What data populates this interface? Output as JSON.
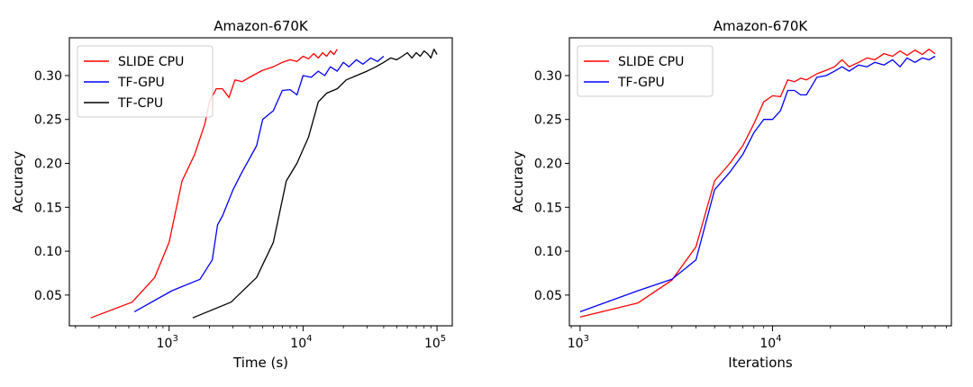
{
  "chart_data": [
    {
      "type": "line",
      "title": "Amazon-670K",
      "xlabel": "Time (s)",
      "ylabel": "Accuracy",
      "xscale": "log",
      "xlim": [
        180,
        130000
      ],
      "ylim": [
        0.015,
        0.343
      ],
      "xticks": [
        {
          "value": 1000,
          "base": "10",
          "exp": "3"
        },
        {
          "value": 10000,
          "base": "10",
          "exp": "4"
        },
        {
          "value": 100000,
          "base": "10",
          "exp": "5"
        }
      ],
      "yticks": [
        "0.05",
        "0.10",
        "0.15",
        "0.20",
        "0.25",
        "0.30"
      ],
      "legend_position": "top-left",
      "grid": false,
      "series": [
        {
          "name": "SLIDE CPU",
          "color": "#ff0000",
          "x": [
            260,
            530,
            780,
            1000,
            1250,
            1550,
            1850,
            2000,
            2250,
            2500,
            2800,
            3100,
            3500,
            4200,
            5000,
            6000,
            7000,
            8000,
            9000,
            10000,
            11000,
            12000,
            13000,
            14000,
            15000,
            16000,
            17000,
            18000
          ],
          "y": [
            0.024,
            0.042,
            0.07,
            0.11,
            0.18,
            0.21,
            0.245,
            0.27,
            0.285,
            0.285,
            0.275,
            0.295,
            0.293,
            0.3,
            0.306,
            0.31,
            0.315,
            0.318,
            0.316,
            0.322,
            0.319,
            0.325,
            0.32,
            0.326,
            0.322,
            0.328,
            0.324,
            0.33
          ]
        },
        {
          "name": "TF-GPU",
          "color": "#0000ff",
          "x": [
            550,
            1050,
            1700,
            2100,
            2300,
            2500,
            3000,
            3500,
            4500,
            5000,
            6000,
            7000,
            8000,
            9000,
            10000,
            11500,
            13000,
            14500,
            16000,
            18000,
            20000,
            22000,
            25000,
            28000,
            32000,
            36000,
            40000
          ],
          "y": [
            0.031,
            0.055,
            0.068,
            0.09,
            0.13,
            0.14,
            0.17,
            0.19,
            0.22,
            0.25,
            0.26,
            0.283,
            0.284,
            0.278,
            0.3,
            0.298,
            0.305,
            0.3,
            0.31,
            0.305,
            0.315,
            0.31,
            0.318,
            0.313,
            0.32,
            0.316,
            0.322
          ]
        },
        {
          "name": "TF-CPU",
          "color": "#000000",
          "x": [
            1500,
            2900,
            4500,
            6000,
            7500,
            9000,
            11000,
            13000,
            15000,
            18000,
            21000,
            25000,
            30000,
            35000,
            40000,
            45000,
            50000,
            55000,
            60000,
            65000,
            70000,
            75000,
            80000,
            85000,
            90000,
            95000,
            100000
          ],
          "y": [
            0.024,
            0.042,
            0.07,
            0.11,
            0.18,
            0.2,
            0.23,
            0.27,
            0.28,
            0.285,
            0.295,
            0.3,
            0.305,
            0.31,
            0.315,
            0.32,
            0.318,
            0.322,
            0.326,
            0.32,
            0.326,
            0.322,
            0.328,
            0.325,
            0.32,
            0.33,
            0.324
          ]
        }
      ]
    },
    {
      "type": "line",
      "title": "Amazon-670K",
      "xlabel": "Iterations",
      "ylabel": "Accuracy",
      "xscale": "log",
      "xlim": [
        880,
        85000
      ],
      "ylim": [
        0.015,
        0.343
      ],
      "xticks": [
        {
          "value": 1000,
          "base": "10",
          "exp": "3"
        },
        {
          "value": 10000,
          "base": "10",
          "exp": "4"
        }
      ],
      "yticks": [
        "0.05",
        "0.10",
        "0.15",
        "0.20",
        "0.25",
        "0.30"
      ],
      "legend_position": "top-left",
      "grid": false,
      "series": [
        {
          "name": "SLIDE CPU",
          "color": "#ff0000",
          "x": [
            1000,
            2000,
            3000,
            4000,
            5000,
            6000,
            7000,
            8000,
            9000,
            10000,
            11000,
            12000,
            13000,
            14000,
            15000,
            17000,
            19000,
            21000,
            23000,
            25000,
            28000,
            31000,
            34000,
            38000,
            42000,
            46000,
            50000,
            55000,
            60000,
            65000,
            70000
          ],
          "y": [
            0.025,
            0.041,
            0.067,
            0.105,
            0.18,
            0.2,
            0.22,
            0.245,
            0.27,
            0.277,
            0.276,
            0.295,
            0.293,
            0.297,
            0.295,
            0.302,
            0.306,
            0.31,
            0.318,
            0.31,
            0.315,
            0.32,
            0.318,
            0.325,
            0.322,
            0.328,
            0.323,
            0.329,
            0.324,
            0.33,
            0.325
          ]
        },
        {
          "name": "TF-GPU",
          "color": "#0000ff",
          "x": [
            1000,
            2000,
            3000,
            4000,
            5000,
            6000,
            7000,
            8000,
            9000,
            10000,
            11000,
            12000,
            13000,
            14000,
            15000,
            17000,
            19000,
            21000,
            23000,
            25000,
            28000,
            31000,
            34000,
            38000,
            42000,
            46000,
            50000,
            55000,
            60000,
            65000,
            70000
          ],
          "y": [
            0.031,
            0.055,
            0.068,
            0.09,
            0.17,
            0.19,
            0.21,
            0.235,
            0.25,
            0.25,
            0.26,
            0.283,
            0.283,
            0.278,
            0.278,
            0.298,
            0.3,
            0.305,
            0.31,
            0.305,
            0.312,
            0.31,
            0.315,
            0.312,
            0.318,
            0.31,
            0.32,
            0.315,
            0.32,
            0.318,
            0.322
          ]
        }
      ]
    }
  ]
}
